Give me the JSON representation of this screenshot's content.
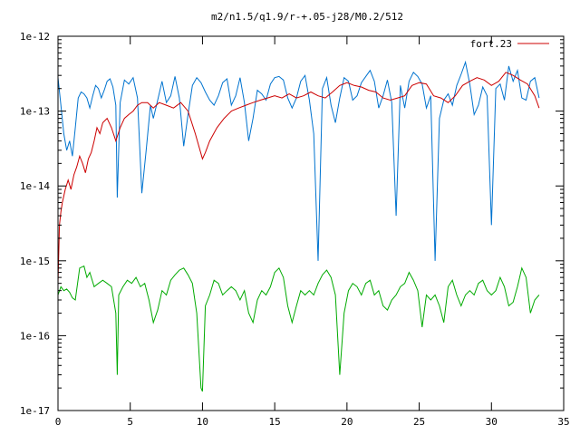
{
  "chart_data": {
    "type": "line",
    "title": "m2/n1.5/q1.9/r-+.05-j28/M0.2/512",
    "xlabel": "",
    "ylabel": "",
    "xlim": [
      0,
      35
    ],
    "ylim": [
      1e-17,
      1e-12
    ],
    "yscale": "log",
    "grid": false,
    "legend_position": "top-right",
    "x_ticks": [
      0,
      5,
      10,
      15,
      20,
      25,
      30,
      35
    ],
    "y_ticks": [
      1e-17,
      1e-16,
      1e-15,
      1e-14,
      1e-13,
      1e-12
    ],
    "x_tick_labels": [
      "0",
      "5",
      "10",
      "15",
      "20",
      "25",
      "30",
      "35"
    ],
    "y_tick_labels": [
      "1e-17",
      "1e-16",
      "1e-15",
      "1e-14",
      "1e-13",
      "1e-12"
    ],
    "series": [
      {
        "name": "fort.23",
        "color": "#cc0000",
        "x": [
          0.0,
          0.1,
          0.2,
          0.3,
          0.5,
          0.7,
          0.9,
          1.1,
          1.3,
          1.5,
          1.7,
          1.9,
          2.1,
          2.3,
          2.5,
          2.7,
          2.9,
          3.1,
          3.4,
          3.7,
          4.0,
          4.3,
          4.6,
          4.9,
          5.2,
          5.5,
          5.8,
          6.2,
          6.6,
          7.0,
          7.5,
          8.0,
          8.5,
          9.0,
          9.5,
          10.0,
          10.2,
          10.5,
          11.0,
          11.5,
          12.0,
          12.5,
          13.0,
          13.5,
          14.0,
          14.5,
          15.0,
          15.5,
          16.0,
          16.5,
          17.0,
          17.5,
          18.0,
          18.5,
          19.0,
          19.5,
          20.0,
          20.5,
          21.0,
          21.5,
          22.0,
          22.5,
          23.0,
          23.5,
          24.0,
          24.5,
          25.0,
          25.5,
          26.0,
          26.5,
          27.0,
          27.5,
          28.0,
          28.5,
          29.0,
          29.5,
          30.0,
          30.5,
          31.0,
          31.5,
          32.0,
          32.5,
          33.0,
          33.3
        ],
        "values": [
          5e-16,
          3e-15,
          4.5e-15,
          6e-15,
          9e-15,
          1.2e-14,
          9e-15,
          1.4e-14,
          1.8e-14,
          2.5e-14,
          2e-14,
          1.5e-14,
          2.3e-14,
          2.8e-14,
          4e-14,
          6e-14,
          5e-14,
          7e-14,
          8e-14,
          6e-14,
          4e-14,
          6e-14,
          8e-14,
          9e-14,
          1e-13,
          1.2e-13,
          1.3e-13,
          1.3e-13,
          1.1e-13,
          1.3e-13,
          1.2e-13,
          1.1e-13,
          1.3e-13,
          1e-13,
          5e-14,
          2.3e-14,
          2.8e-14,
          4e-14,
          6e-14,
          8e-14,
          1e-13,
          1.1e-13,
          1.2e-13,
          1.3e-13,
          1.4e-13,
          1.5e-13,
          1.6e-13,
          1.5e-13,
          1.7e-13,
          1.5e-13,
          1.6e-13,
          1.8e-13,
          1.6e-13,
          1.5e-13,
          1.8e-13,
          2.2e-13,
          2.4e-13,
          2.2e-13,
          2.1e-13,
          1.9e-13,
          1.8e-13,
          1.5e-13,
          1.4e-13,
          1.5e-13,
          1.6e-13,
          2.2e-13,
          2.4e-13,
          2.3e-13,
          1.6e-13,
          1.5e-13,
          1.3e-13,
          1.6e-13,
          2.2e-13,
          2.5e-13,
          2.8e-13,
          2.6e-13,
          2.2e-13,
          2.5e-13,
          3.3e-13,
          3e-13,
          2.6e-13,
          2.3e-13,
          1.6e-13,
          1.1e-13
        ]
      },
      {
        "name": "",
        "color": "#0073cf",
        "x": [
          0.0,
          0.2,
          0.4,
          0.6,
          0.8,
          1.0,
          1.2,
          1.4,
          1.6,
          1.8,
          2.0,
          2.2,
          2.4,
          2.6,
          2.8,
          3.0,
          3.2,
          3.4,
          3.6,
          3.8,
          4.0,
          4.1,
          4.3,
          4.6,
          4.9,
          5.2,
          5.5,
          5.8,
          6.1,
          6.4,
          6.6,
          6.9,
          7.2,
          7.5,
          7.8,
          8.1,
          8.4,
          8.7,
          9.0,
          9.3,
          9.6,
          9.9,
          10.2,
          10.5,
          10.8,
          11.1,
          11.4,
          11.7,
          12.0,
          12.3,
          12.6,
          12.9,
          13.2,
          13.5,
          13.8,
          14.1,
          14.4,
          14.7,
          15.0,
          15.3,
          15.6,
          15.9,
          16.2,
          16.5,
          16.8,
          17.1,
          17.4,
          17.7,
          18.0,
          18.3,
          18.6,
          18.9,
          19.2,
          19.5,
          19.8,
          20.1,
          20.4,
          20.7,
          21.0,
          21.3,
          21.6,
          21.9,
          22.2,
          22.5,
          22.8,
          23.1,
          23.4,
          23.7,
          24.0,
          24.3,
          24.6,
          24.9,
          25.2,
          25.5,
          25.8,
          26.1,
          26.4,
          26.7,
          27.0,
          27.3,
          27.6,
          27.9,
          28.2,
          28.5,
          28.8,
          29.1,
          29.4,
          29.7,
          30.0,
          30.3,
          30.6,
          30.9,
          31.2,
          31.5,
          31.8,
          32.1,
          32.4,
          32.7,
          33.0,
          33.3
        ],
        "values": [
          2.8e-13,
          1.2e-13,
          5e-14,
          3e-14,
          4e-14,
          2.5e-14,
          6e-14,
          1.5e-13,
          1.8e-13,
          1.7e-13,
          1.5e-13,
          1.1e-13,
          1.6e-13,
          2.2e-13,
          2e-13,
          1.5e-13,
          1.9e-13,
          2.5e-13,
          2.7e-13,
          2.1e-13,
          1.2e-13,
          7e-15,
          1.3e-13,
          2.6e-13,
          2.3e-13,
          2.8e-13,
          1.5e-13,
          8e-15,
          3e-14,
          1.2e-13,
          8e-14,
          1.4e-13,
          2.5e-13,
          1.3e-13,
          1.6e-13,
          2.9e-13,
          1.5e-13,
          3.4e-14,
          9e-14,
          2.2e-13,
          2.8e-13,
          2.4e-13,
          1.8e-13,
          1.4e-13,
          1.2e-13,
          1.6e-13,
          2.4e-13,
          2.7e-13,
          1.2e-13,
          1.6e-13,
          2.8e-13,
          1.3e-13,
          4e-14,
          8e-14,
          1.9e-13,
          1.7e-13,
          1.4e-13,
          2.3e-13,
          2.8e-13,
          2.9e-13,
          2.6e-13,
          1.5e-13,
          1.1e-13,
          1.5e-13,
          2.5e-13,
          3e-13,
          1.4e-13,
          5e-14,
          1e-15,
          2e-13,
          2.8e-13,
          1.2e-13,
          7e-14,
          1.5e-13,
          2.8e-13,
          2.5e-13,
          1.4e-13,
          1.6e-13,
          2.4e-13,
          2.9e-13,
          3.5e-13,
          2.5e-13,
          1.1e-13,
          1.6e-13,
          2.6e-13,
          1.3e-13,
          4e-15,
          2.2e-13,
          1.1e-13,
          2.5e-13,
          3.3e-13,
          2.9e-13,
          2.3e-13,
          1.1e-13,
          1.6e-13,
          1e-15,
          8e-14,
          1.4e-13,
          1.7e-13,
          1.2e-13,
          2.2e-13,
          3.1e-13,
          4.5e-13,
          2.3e-13,
          9e-14,
          1.2e-13,
          2.1e-13,
          1.6e-13,
          3e-15,
          2e-13,
          2.3e-13,
          1.4e-13,
          4e-13,
          2.5e-13,
          3.5e-13,
          1.5e-13,
          1.4e-13,
          2.5e-13,
          2.8e-13,
          1.5e-13
        ]
      },
      {
        "name": "",
        "color": "#00aa00",
        "x": [
          0.0,
          0.2,
          0.4,
          0.6,
          0.8,
          1.0,
          1.2,
          1.5,
          1.8,
          2.0,
          2.2,
          2.5,
          2.8,
          3.1,
          3.4,
          3.7,
          4.0,
          4.1,
          4.2,
          4.5,
          4.8,
          5.1,
          5.4,
          5.7,
          6.0,
          6.3,
          6.6,
          6.9,
          7.2,
          7.5,
          7.8,
          8.1,
          8.4,
          8.7,
          9.0,
          9.3,
          9.6,
          9.9,
          10.0,
          10.2,
          10.5,
          10.8,
          11.1,
          11.4,
          11.7,
          12.0,
          12.3,
          12.6,
          12.9,
          13.2,
          13.5,
          13.8,
          14.1,
          14.4,
          14.7,
          15.0,
          15.3,
          15.6,
          15.9,
          16.2,
          16.5,
          16.8,
          17.1,
          17.4,
          17.7,
          18.0,
          18.3,
          18.6,
          18.9,
          19.2,
          19.5,
          19.8,
          20.1,
          20.4,
          20.7,
          21.0,
          21.3,
          21.6,
          21.9,
          22.2,
          22.5,
          22.8,
          23.1,
          23.4,
          23.7,
          24.0,
          24.3,
          24.6,
          24.9,
          25.2,
          25.5,
          25.8,
          26.1,
          26.4,
          26.7,
          27.0,
          27.3,
          27.6,
          27.9,
          28.2,
          28.5,
          28.8,
          29.1,
          29.4,
          29.7,
          30.0,
          30.3,
          30.6,
          30.9,
          31.2,
          31.5,
          31.8,
          32.1,
          32.4,
          32.7,
          33.0,
          33.3
        ],
        "values": [
          3.5e-16,
          4.5e-16,
          4e-16,
          4.2e-16,
          3.8e-16,
          3.2e-16,
          3e-16,
          8e-16,
          8.5e-16,
          6e-16,
          7e-16,
          4.5e-16,
          5e-16,
          5.5e-16,
          5e-16,
          4.5e-16,
          2e-16,
          3e-17,
          3.5e-16,
          4.5e-16,
          5.5e-16,
          5e-16,
          6e-16,
          4.5e-16,
          5e-16,
          3e-16,
          1.5e-16,
          2.2e-16,
          4e-16,
          3.5e-16,
          5.5e-16,
          6.5e-16,
          7.5e-16,
          8e-16,
          6.5e-16,
          5e-16,
          2e-16,
          2e-17,
          1.8e-17,
          2.5e-16,
          3.5e-16,
          5.5e-16,
          5e-16,
          3.5e-16,
          4e-16,
          4.5e-16,
          4e-16,
          3e-16,
          4e-16,
          2e-16,
          1.5e-16,
          3e-16,
          4e-16,
          3.5e-16,
          4.5e-16,
          7e-16,
          8e-16,
          6e-16,
          2.5e-16,
          1.5e-16,
          2.5e-16,
          4e-16,
          3.5e-16,
          4e-16,
          3.5e-16,
          5e-16,
          6.5e-16,
          7.5e-16,
          6e-16,
          3.5e-16,
          3e-17,
          2e-16,
          4e-16,
          5e-16,
          4.5e-16,
          3.5e-16,
          5e-16,
          5.5e-16,
          3.5e-16,
          4e-16,
          2.5e-16,
          2.2e-16,
          3e-16,
          3.5e-16,
          4.5e-16,
          5e-16,
          7e-16,
          5.5e-16,
          4e-16,
          1.3e-16,
          3.5e-16,
          3e-16,
          3.5e-16,
          2.5e-16,
          1.5e-16,
          4.5e-16,
          5.5e-16,
          3.5e-16,
          2.5e-16,
          3.5e-16,
          4e-16,
          3.5e-16,
          5e-16,
          5.5e-16,
          4e-16,
          3.5e-16,
          4e-16,
          6e-16,
          4.5e-16,
          2.5e-16,
          2.8e-16,
          4.5e-16,
          8e-16,
          6e-16,
          2e-16,
          3e-16,
          3.5e-16
        ]
      }
    ]
  }
}
